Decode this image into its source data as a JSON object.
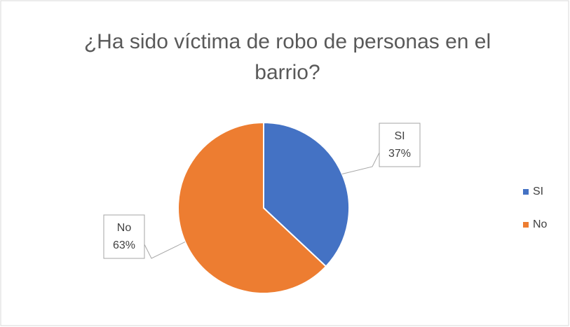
{
  "chart_data": {
    "type": "pie",
    "title": "¿Ha sido víctima de robo de personas en el barrio?",
    "categories": [
      "SI",
      "No"
    ],
    "values": [
      37,
      63
    ],
    "value_labels": [
      "37%",
      "63%"
    ],
    "colors": [
      "#4472c4",
      "#ed7d31"
    ],
    "legend": "right"
  }
}
